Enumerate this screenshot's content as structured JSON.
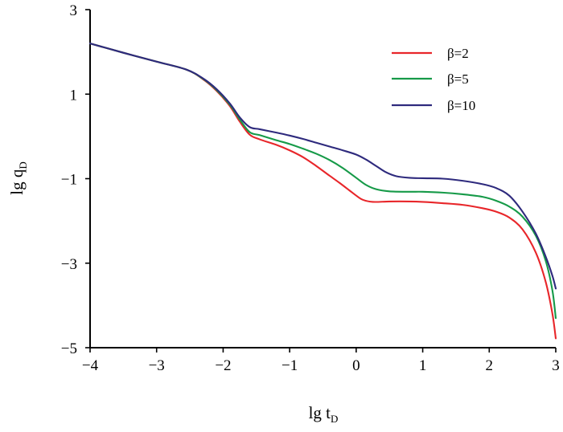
{
  "chart_data": {
    "type": "line",
    "title": "",
    "xlabel": {
      "main": "lg t",
      "sub": "D"
    },
    "ylabel": {
      "main": "lg q",
      "sub": "D"
    },
    "xlim": [
      -4,
      3
    ],
    "ylim": [
      -5,
      3
    ],
    "xticks": [
      "−4",
      "−3",
      "−2",
      "−1",
      "0",
      "1",
      "2",
      "3"
    ],
    "xtick_values": [
      -4,
      -3,
      -2,
      -1,
      0,
      1,
      2,
      3
    ],
    "yticks": [
      "3",
      "1",
      "−1",
      "−3",
      "−5"
    ],
    "ytick_values": [
      3,
      1,
      -1,
      -3,
      -5
    ],
    "grid": false,
    "legend_position": "top-right",
    "series": [
      {
        "name": "β=2",
        "color": "#e8262a",
        "x": [
          -4,
          -3.5,
          -3,
          -2.55,
          -2.3,
          -2.1,
          -1.9,
          -1.75,
          -1.6,
          -1.45,
          -1.2,
          -1,
          -0.8,
          -0.6,
          -0.4,
          -0.25,
          -0.1,
          0,
          0.1,
          0.25,
          0.5,
          0.8,
          1,
          1.3,
          1.6,
          1.9,
          2.1,
          2.3,
          2.5,
          2.7,
          2.85,
          2.95,
          3
        ],
        "y": [
          2.2,
          1.98,
          1.77,
          1.58,
          1.35,
          1.08,
          0.72,
          0.35,
          0.04,
          -0.07,
          -0.2,
          -0.33,
          -0.49,
          -0.7,
          -0.93,
          -1.1,
          -1.28,
          -1.4,
          -1.5,
          -1.55,
          -1.54,
          -1.54,
          -1.55,
          -1.58,
          -1.62,
          -1.7,
          -1.78,
          -1.92,
          -2.2,
          -2.75,
          -3.45,
          -4.2,
          -4.78
        ]
      },
      {
        "name": "β=5",
        "color": "#169a48",
        "x": [
          -4,
          -3.5,
          -3,
          -2.55,
          -2.3,
          -2.1,
          -1.9,
          -1.75,
          -1.6,
          -1.45,
          -1.2,
          -1,
          -0.8,
          -0.6,
          -0.4,
          -0.2,
          0,
          0.15,
          0.3,
          0.5,
          0.8,
          1,
          1.3,
          1.6,
          1.9,
          2.1,
          2.3,
          2.5,
          2.7,
          2.85,
          2.95,
          3
        ],
        "y": [
          2.2,
          1.98,
          1.77,
          1.58,
          1.36,
          1.1,
          0.75,
          0.4,
          0.1,
          0.03,
          -0.09,
          -0.18,
          -0.29,
          -0.41,
          -0.56,
          -0.75,
          -0.98,
          -1.15,
          -1.25,
          -1.3,
          -1.31,
          -1.31,
          -1.33,
          -1.37,
          -1.43,
          -1.52,
          -1.66,
          -1.9,
          -2.35,
          -2.95,
          -3.65,
          -4.3
        ]
      },
      {
        "name": "β=10",
        "color": "#2e2a7d",
        "x": [
          -4,
          -3.5,
          -3,
          -2.55,
          -2.3,
          -2.1,
          -1.9,
          -1.75,
          -1.6,
          -1.45,
          -1.2,
          -1,
          -0.8,
          -0.6,
          -0.4,
          -0.2,
          0,
          0.15,
          0.3,
          0.45,
          0.6,
          0.8,
          1,
          1.3,
          1.6,
          1.9,
          2.1,
          2.3,
          2.5,
          2.7,
          2.85,
          2.95,
          3
        ],
        "y": [
          2.2,
          1.98,
          1.77,
          1.58,
          1.37,
          1.12,
          0.78,
          0.45,
          0.22,
          0.17,
          0.09,
          0.02,
          -0.06,
          -0.15,
          -0.24,
          -0.33,
          -0.43,
          -0.55,
          -0.7,
          -0.85,
          -0.94,
          -0.98,
          -0.99,
          -1.0,
          -1.05,
          -1.13,
          -1.22,
          -1.4,
          -1.78,
          -2.3,
          -2.85,
          -3.3,
          -3.6
        ]
      }
    ]
  }
}
